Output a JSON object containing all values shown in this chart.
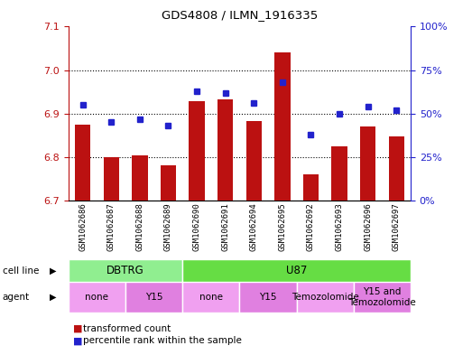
{
  "title": "GDS4808 / ILMN_1916335",
  "samples": [
    "GSM1062686",
    "GSM1062687",
    "GSM1062688",
    "GSM1062689",
    "GSM1062690",
    "GSM1062691",
    "GSM1062694",
    "GSM1062695",
    "GSM1062692",
    "GSM1062693",
    "GSM1062696",
    "GSM1062697"
  ],
  "red_values": [
    6.875,
    6.8,
    6.803,
    6.782,
    6.928,
    6.932,
    6.882,
    7.04,
    6.76,
    6.825,
    6.87,
    6.848
  ],
  "blue_values": [
    55,
    45,
    47,
    43,
    63,
    62,
    56,
    68,
    38,
    50,
    54,
    52
  ],
  "ylim_left": [
    6.7,
    7.1
  ],
  "ylim_right": [
    0,
    100
  ],
  "yticks_left": [
    6.7,
    6.8,
    6.9,
    7.0,
    7.1
  ],
  "yticks_right": [
    0,
    25,
    50,
    75,
    100
  ],
  "cell_line_groups": [
    {
      "label": "DBTRG",
      "start": 0,
      "end": 3,
      "color": "#90EE90"
    },
    {
      "label": "U87",
      "start": 4,
      "end": 11,
      "color": "#66DD44"
    }
  ],
  "agent_groups": [
    {
      "label": "none",
      "start": 0,
      "end": 1,
      "color": "#F0A0F0"
    },
    {
      "label": "Y15",
      "start": 2,
      "end": 3,
      "color": "#E080E0"
    },
    {
      "label": "none",
      "start": 4,
      "end": 5,
      "color": "#F0A0F0"
    },
    {
      "label": "Y15",
      "start": 6,
      "end": 7,
      "color": "#E080E0"
    },
    {
      "label": "Temozolomide",
      "start": 8,
      "end": 9,
      "color": "#F0A0F0"
    },
    {
      "label": "Y15 and\nTemozolomide",
      "start": 10,
      "end": 11,
      "color": "#E080E0"
    }
  ],
  "bar_color": "#BB1111",
  "dot_color": "#2222CC",
  "chart_bg": "#FFFFFF",
  "tick_bg": "#D8D8D8",
  "fig_bg": "#FFFFFF"
}
